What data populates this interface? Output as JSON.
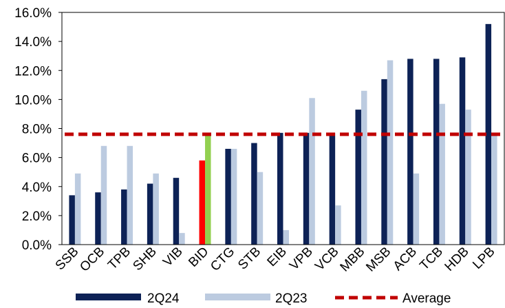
{
  "chart_data": {
    "type": "bar",
    "categories": [
      "SSB",
      "OCB",
      "TPB",
      "SHB",
      "VIB",
      "BID",
      "CTG",
      "STB",
      "EIB",
      "VPB",
      "VCB",
      "MBB",
      "MSB",
      "ACB",
      "TCB",
      "HDB",
      "LPB"
    ],
    "series": [
      {
        "name": "2Q24",
        "color": "#0d2256",
        "values": [
          3.4,
          3.6,
          3.8,
          4.2,
          4.6,
          5.8,
          6.6,
          7.0,
          7.7,
          7.7,
          7.7,
          9.3,
          11.4,
          12.8,
          12.8,
          12.9,
          15.2
        ]
      },
      {
        "name": "2Q23",
        "color": "#bccbe0",
        "values": [
          4.9,
          6.8,
          6.8,
          4.9,
          0.8,
          7.7,
          6.6,
          5.0,
          1.0,
          10.1,
          2.7,
          10.6,
          12.7,
          4.9,
          9.7,
          9.3,
          7.6
        ]
      }
    ],
    "highlight": {
      "category": "BID",
      "colors": {
        "2Q24": "#ff0000",
        "2Q23": "#92d050"
      }
    },
    "average": {
      "name": "Average",
      "value": 7.6,
      "color": "#c00000",
      "style": "dashed"
    },
    "y_ticks": [
      "0.0%",
      "2.0%",
      "4.0%",
      "6.0%",
      "8.0%",
      "10.0%",
      "12.0%",
      "14.0%",
      "16.0%"
    ],
    "ylim": [
      0,
      16
    ],
    "y_unit": "%",
    "title": "",
    "xlabel": "",
    "ylabel": "",
    "legend_placement": "bottom",
    "grid": false
  }
}
